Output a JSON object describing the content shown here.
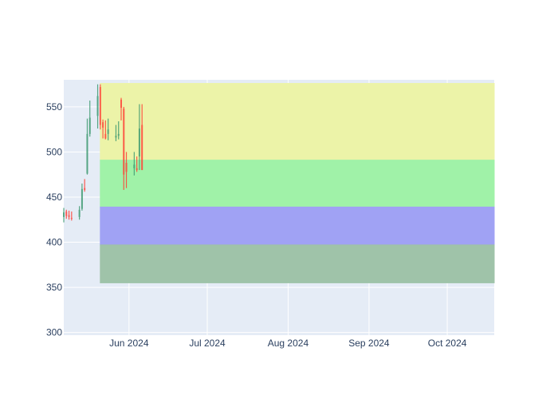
{
  "chart_data": {
    "type": "candlestick",
    "title": "",
    "xlabel": "",
    "ylabel": "",
    "grid": true,
    "legend": "none",
    "colors": {
      "plot_bg": "#e5ecf6",
      "grid": "#ffffff",
      "tick_text": "#2a3f5f",
      "increasing": "#3d9970",
      "decreasing": "#ff4136"
    },
    "x_range": [
      "2024-05-07",
      "2024-10-19"
    ],
    "ylim": [
      297,
      580
    ],
    "x_ticks": [
      {
        "date": "2024-06-01",
        "label": "Jun 2024"
      },
      {
        "date": "2024-07-01",
        "label": "Jul 2024"
      },
      {
        "date": "2024-08-01",
        "label": "Aug 2024"
      },
      {
        "date": "2024-09-01",
        "label": "Sep 2024"
      },
      {
        "date": "2024-10-01",
        "label": "Oct 2024"
      }
    ],
    "y_ticks": [
      300,
      350,
      400,
      450,
      500,
      550
    ],
    "zones": [
      {
        "x0": "2024-05-21",
        "x1": "2024-10-19",
        "y0": 491,
        "y1": 576,
        "color": "#ecf3a8"
      },
      {
        "x0": "2024-05-21",
        "x1": "2024-10-19",
        "y0": 439,
        "y1": 491,
        "color": "#a0f2a8"
      },
      {
        "x0": "2024-05-21",
        "x1": "2024-10-19",
        "y0": 397,
        "y1": 439,
        "color": "#a0a2f4"
      },
      {
        "x0": "2024-05-21",
        "x1": "2024-10-19",
        "y0": 355,
        "y1": 397,
        "color": "#9fc3a9"
      }
    ],
    "series": [
      {
        "type": "candlestick",
        "x": [
          "2024-05-07",
          "2024-05-08",
          "2024-05-09",
          "2024-05-10",
          "2024-05-13",
          "2024-05-14",
          "2024-05-15",
          "2024-05-16",
          "2024-05-17",
          "2024-05-20",
          "2024-05-21",
          "2024-05-22",
          "2024-05-23",
          "2024-05-24",
          "2024-05-27",
          "2024-05-28",
          "2024-05-29",
          "2024-05-30",
          "2024-05-31",
          "2024-06-03",
          "2024-06-04",
          "2024-06-05",
          "2024-06-06"
        ],
        "open": [
          428,
          434,
          430,
          427,
          428,
          437,
          460,
          476,
          520,
          540,
          572,
          533,
          520,
          520,
          516,
          518,
          558,
          548,
          488,
          482,
          482,
          495,
          530
        ],
        "high": [
          438,
          436,
          435,
          434,
          440,
          465,
          470,
          537,
          557,
          575,
          575,
          536,
          535,
          537,
          530,
          534,
          560,
          550,
          500,
          500,
          495,
          553,
          553
        ],
        "low": [
          422,
          426,
          425,
          424,
          425,
          435,
          456,
          475,
          517,
          526,
          525,
          515,
          514,
          513,
          512,
          514,
          535,
          458,
          460,
          474,
          478,
          480,
          480
        ],
        "close": [
          433,
          429,
          428,
          426,
          436,
          459,
          458,
          520,
          538,
          562,
          530,
          527,
          515,
          525,
          518,
          520,
          549,
          475,
          478,
          486,
          480,
          526,
          480
        ]
      }
    ]
  }
}
